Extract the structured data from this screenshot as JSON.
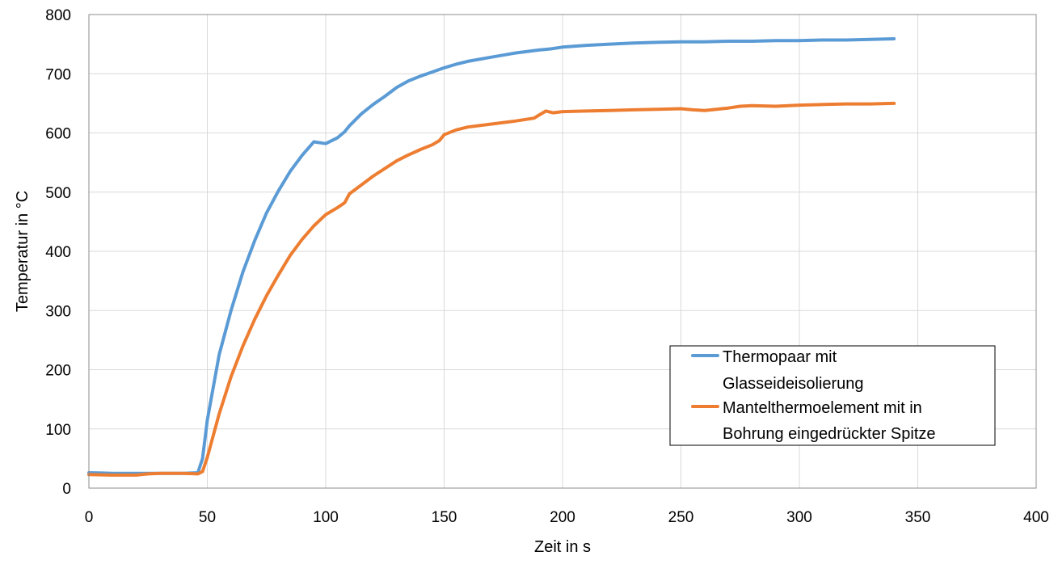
{
  "chart_data": {
    "type": "line",
    "title": "",
    "xlabel": "Zeit in s",
    "ylabel": "Temperatur in °C",
    "xlim": [
      0,
      400
    ],
    "ylim": [
      0,
      800
    ],
    "xticks": [
      "0",
      "50",
      "100",
      "150",
      "200",
      "250",
      "300",
      "350",
      "400"
    ],
    "yticks": [
      "0",
      "100",
      "200",
      "300",
      "400",
      "500",
      "600",
      "700",
      "800"
    ],
    "grid": true,
    "legend_position": "lower-right",
    "series": [
      {
        "name": "Thermopaar mit Glasseideisolierung",
        "legend_lines": [
          "Thermopaar mit",
          "Glasseideisolierung"
        ],
        "color": "#5b9bd5",
        "x": [
          0,
          10,
          20,
          30,
          40,
          46,
          48,
          50,
          55,
          60,
          65,
          70,
          75,
          80,
          85,
          90,
          95,
          100,
          105,
          108,
          110,
          115,
          120,
          125,
          130,
          135,
          140,
          145,
          150,
          155,
          160,
          170,
          180,
          190,
          195,
          200,
          210,
          220,
          230,
          240,
          250,
          260,
          270,
          280,
          290,
          300,
          310,
          320,
          330,
          340
        ],
        "y": [
          26,
          25,
          25,
          25,
          25,
          26,
          50,
          115,
          225,
          300,
          365,
          418,
          465,
          502,
          535,
          562,
          585,
          582,
          592,
          602,
          612,
          632,
          648,
          662,
          677,
          688,
          696,
          703,
          710,
          716,
          721,
          728,
          735,
          740,
          742,
          745,
          748,
          750,
          752,
          753,
          754,
          754,
          755,
          755,
          756,
          756,
          757,
          757,
          758,
          759
        ]
      },
      {
        "name": "Mantelthermoelement mit in Bohrung eingedrückter Spitze",
        "legend_lines": [
          "Mantelthermoelement mit in",
          "Bohrung eingedrückter Spitze"
        ],
        "color": "#ed7d31",
        "x": [
          0,
          10,
          20,
          25,
          30,
          40,
          46,
          48,
          50,
          55,
          60,
          65,
          70,
          75,
          80,
          85,
          90,
          95,
          100,
          105,
          108,
          110,
          115,
          120,
          125,
          130,
          135,
          140,
          145,
          148,
          150,
          155,
          160,
          170,
          180,
          188,
          190,
          193,
          196,
          200,
          210,
          220,
          230,
          240,
          250,
          255,
          260,
          265,
          270,
          275,
          280,
          290,
          300,
          310,
          320,
          330,
          340
        ],
        "y": [
          23,
          22,
          22,
          24,
          25,
          25,
          24,
          28,
          52,
          125,
          188,
          240,
          285,
          325,
          360,
          393,
          420,
          443,
          462,
          474,
          482,
          497,
          512,
          527,
          540,
          553,
          563,
          572,
          580,
          587,
          597,
          605,
          610,
          615,
          620,
          625,
          630,
          637,
          634,
          636,
          637,
          638,
          639,
          640,
          641,
          639,
          638,
          640,
          642,
          645,
          646,
          645,
          647,
          648,
          649,
          649,
          650
        ]
      }
    ]
  }
}
